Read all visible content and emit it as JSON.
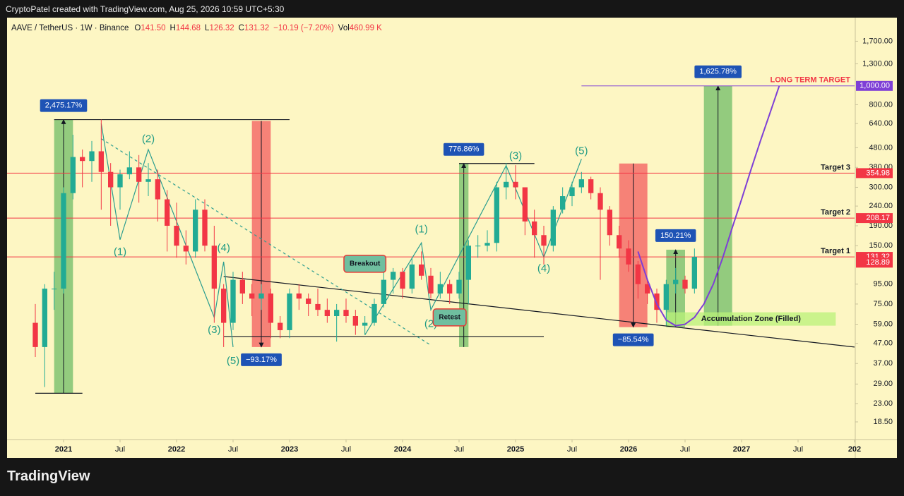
{
  "header": {
    "credit": "CryptoPatel created with TradingView.com, Aug 25, 2026 10:59 UTC+5:30",
    "logo": "TradingView"
  },
  "chart_data": {
    "type": "candlestick",
    "symbol": "AAVE / TetherUS · 1W · Binance",
    "ohlc": [
      {
        "key": "O",
        "value": "141.50"
      },
      {
        "key": "H",
        "value": "144.68"
      },
      {
        "key": "L",
        "value": "126.32"
      },
      {
        "key": "C",
        "value": "131.32"
      }
    ],
    "change": "−10.19 (−7.20%)",
    "volume": {
      "key": "Vol",
      "value": "460.99 K"
    },
    "log_scale": true,
    "up_color": "#22ab94",
    "down_color": "#f23645",
    "x": [
      "2020-10",
      "2020-11",
      "2020-12",
      "2021-01",
      "2021-02",
      "2021-03",
      "2021-04",
      "2021-05",
      "2021-06",
      "2021-07",
      "2021-08",
      "2021-09",
      "2021-10",
      "2021-11",
      "2021-12",
      "2022-01",
      "2022-02",
      "2022-03",
      "2022-04",
      "2022-05",
      "2022-06",
      "2022-07",
      "2022-08",
      "2022-09",
      "2022-10",
      "2022-11",
      "2022-12",
      "2023-01",
      "2023-02",
      "2023-03",
      "2023-04",
      "2023-05",
      "2023-06",
      "2023-07",
      "2023-08",
      "2023-09",
      "2023-10",
      "2023-11",
      "2023-12",
      "2024-01",
      "2024-02",
      "2024-03",
      "2024-04",
      "2024-05",
      "2024-06",
      "2024-07",
      "2024-08",
      "2024-09",
      "2024-10",
      "2024-11",
      "2024-12",
      "2025-01",
      "2025-02",
      "2025-03",
      "2025-04",
      "2025-05",
      "2025-06",
      "2025-07",
      "2025-08",
      "2025-09",
      "2025-10",
      "2025-11",
      "2025-12",
      "2026-01",
      "2026-02",
      "2026-03",
      "2026-04",
      "2026-05",
      "2026-06",
      "2026-07",
      "2026-08"
    ],
    "open": [
      60,
      45,
      90,
      90,
      280,
      430,
      410,
      460,
      360,
      300,
      350,
      380,
      320,
      330,
      260,
      190,
      150,
      140,
      230,
      150,
      90,
      60,
      100,
      85,
      80,
      85,
      60,
      55,
      85,
      80,
      75,
      70,
      65,
      70,
      65,
      58,
      60,
      75,
      100,
      110,
      90,
      120,
      105,
      85,
      95,
      85,
      100,
      150,
      150,
      155,
      300,
      320,
      300,
      200,
      170,
      150,
      230,
      270,
      300,
      330,
      280,
      230,
      170,
      145,
      120,
      95,
      85,
      70,
      95,
      100,
      90
    ],
    "high": [
      75,
      95,
      110,
      300,
      560,
      470,
      520,
      670,
      400,
      370,
      460,
      440,
      400,
      370,
      290,
      250,
      180,
      260,
      260,
      190,
      95,
      110,
      110,
      95,
      95,
      90,
      65,
      90,
      95,
      85,
      90,
      80,
      75,
      80,
      70,
      65,
      80,
      110,
      115,
      115,
      130,
      140,
      115,
      110,
      100,
      110,
      160,
      170,
      180,
      320,
      400,
      390,
      300,
      230,
      190,
      240,
      300,
      320,
      360,
      340,
      300,
      240,
      190,
      160,
      125,
      100,
      90,
      100,
      115,
      105,
      145
    ],
    "low": [
      40,
      28,
      70,
      85,
      260,
      300,
      320,
      230,
      190,
      230,
      330,
      250,
      270,
      200,
      140,
      130,
      120,
      130,
      140,
      60,
      45,
      55,
      75,
      65,
      70,
      50,
      50,
      50,
      70,
      65,
      65,
      60,
      48,
      60,
      52,
      52,
      58,
      72,
      85,
      80,
      85,
      100,
      80,
      80,
      75,
      80,
      75,
      130,
      140,
      140,
      260,
      260,
      170,
      130,
      120,
      140,
      220,
      240,
      280,
      260,
      100,
      150,
      130,
      110,
      80,
      75,
      60,
      58,
      85,
      85,
      85
    ],
    "close": [
      45,
      90,
      90,
      280,
      430,
      410,
      460,
      360,
      300,
      350,
      380,
      320,
      330,
      260,
      190,
      150,
      140,
      230,
      150,
      90,
      60,
      100,
      85,
      80,
      85,
      60,
      55,
      85,
      80,
      75,
      70,
      65,
      70,
      65,
      58,
      60,
      75,
      100,
      110,
      90,
      120,
      105,
      85,
      95,
      85,
      100,
      150,
      150,
      155,
      300,
      320,
      300,
      200,
      170,
      150,
      230,
      270,
      300,
      330,
      280,
      230,
      170,
      145,
      120,
      95,
      85,
      70,
      95,
      100,
      90,
      131.32
    ],
    "xlim": [
      "2020-07",
      "2028-01"
    ],
    "xticks": [
      {
        "value": "2021-01",
        "label": "2021"
      },
      {
        "value": "2021-07",
        "label": "Jul"
      },
      {
        "value": "2022-01",
        "label": "2022"
      },
      {
        "value": "2022-07",
        "label": "Jul"
      },
      {
        "value": "2023-01",
        "label": "2023"
      },
      {
        "value": "2023-07",
        "label": "Jul"
      },
      {
        "value": "2024-01",
        "label": "2024"
      },
      {
        "value": "2024-07",
        "label": "Jul"
      },
      {
        "value": "2025-01",
        "label": "2025"
      },
      {
        "value": "2025-07",
        "label": "Jul"
      },
      {
        "value": "2026-01",
        "label": "2026"
      },
      {
        "value": "2026-07",
        "label": "Jul"
      },
      {
        "value": "2027-01",
        "label": "2027"
      },
      {
        "value": "2027-07",
        "label": "Jul"
      },
      {
        "value": "2028-01",
        "label": "202"
      }
    ],
    "ylim": [
      15,
      2250
    ],
    "yticks": [
      {
        "value": 18.5,
        "label": "18.50"
      },
      {
        "value": 23,
        "label": "23.00"
      },
      {
        "value": 29,
        "label": "29.00"
      },
      {
        "value": 37,
        "label": "37.00"
      },
      {
        "value": 47,
        "label": "47.00"
      },
      {
        "value": 59,
        "label": "59.00"
      },
      {
        "value": 75,
        "label": "75.00"
      },
      {
        "value": 95,
        "label": "95.00"
      },
      {
        "value": 150,
        "label": "150.00"
      },
      {
        "value": 190,
        "label": "190.00"
      },
      {
        "value": 240,
        "label": "240.00"
      },
      {
        "value": 300,
        "label": "300.00"
      },
      {
        "value": 380,
        "label": "380.00"
      },
      {
        "value": 480,
        "label": "480.00"
      },
      {
        "value": 640,
        "label": "640.00"
      },
      {
        "value": 800,
        "label": "800.00"
      },
      {
        "value": 1300,
        "label": "1,300.00"
      },
      {
        "value": 1700,
        "label": "1,700.00"
      }
    ],
    "levels": [
      {
        "name": "Target 3",
        "value": 354.98,
        "label": "354.98",
        "color": "#f23645",
        "text_color": "#131722"
      },
      {
        "name": "Target 2",
        "value": 208.17,
        "label": "208.17",
        "color": "#f23645",
        "text_color": "#131722"
      },
      {
        "name": "Target 1",
        "value": 131.32,
        "label": "131.32",
        "color": "#f23645",
        "text_color": "#131722"
      },
      {
        "name": "LONG TERM TARGET",
        "value": 1000,
        "label": "1,000.00",
        "color": "#7e3fd6",
        "text_color": "#f23645",
        "from": "2025-08"
      }
    ],
    "axis_labels": [
      {
        "value": 128.89,
        "label": "128.89",
        "color": "#f23645"
      }
    ],
    "ranges": [
      {
        "label": "2,475.17%",
        "x0": "2020-12",
        "x1": "2021-02",
        "from": 26,
        "to": 670,
        "color": "#4caf50"
      },
      {
        "label": "−93.17%",
        "x0": "2022-09",
        "x1": "2022-11",
        "from": 660,
        "to": 45,
        "color": "#f23645"
      },
      {
        "label": "776.86%",
        "x0": "2024-07",
        "x1": "2024-08",
        "from": 45,
        "to": 398,
        "color": "#4caf50"
      },
      {
        "label": "−85.54%",
        "x0": "2025-12",
        "x1": "2026-03",
        "from": 398,
        "to": 57,
        "color": "#f23645"
      },
      {
        "label": "150.21%",
        "x0": "2026-05",
        "x1": "2026-07",
        "from": 57,
        "to": 143,
        "color": "#4caf50"
      },
      {
        "label": "1,625.78%",
        "x0": "2026-09",
        "x1": "2026-12",
        "from": 58,
        "to": 1000,
        "color": "#4caf50"
      }
    ],
    "lines": [
      {
        "points": [
          [
            "2020-12",
            670
          ],
          [
            "2023-01",
            670
          ]
        ],
        "color": "#131722"
      },
      {
        "points": [
          [
            "2020-10",
            26
          ],
          [
            "2021-03",
            26
          ]
        ],
        "color": "#131722"
      },
      {
        "points": [
          [
            "2022-06",
            51
          ],
          [
            "2025-04",
            51
          ]
        ],
        "color": "#131722"
      },
      {
        "points": [
          [
            "2024-07",
            398
          ],
          [
            "2025-03",
            398
          ]
        ],
        "color": "#131722"
      },
      {
        "points": [
          [
            "2022-06",
            104
          ],
          [
            "2028-01",
            45
          ]
        ],
        "color": "#131722"
      },
      {
        "points": [
          [
            "2021-05",
            534
          ],
          [
            "2024-04",
            46
          ]
        ],
        "color": "#2a9d8f",
        "dashed": true
      },
      {
        "points": [
          [
            "2021-05",
            640
          ],
          [
            "2021-07",
            161
          ],
          [
            "2021-10",
            470
          ],
          [
            "2022-05",
            64
          ],
          [
            "2022-06",
            124
          ],
          [
            "2022-07",
            45
          ]
        ],
        "color": "#2a9d8f"
      },
      {
        "points": [
          [
            "2023-09",
            52
          ],
          [
            "2024-03",
            155
          ],
          [
            "2024-04",
            70
          ],
          [
            "2024-12",
            388
          ],
          [
            "2025-04",
            131
          ],
          [
            "2025-08",
            420
          ]
        ],
        "color": "#2a9d8f"
      }
    ],
    "wave_labels": [
      {
        "text": "(1)",
        "x": "2021-07",
        "y": 139
      },
      {
        "text": "(2)",
        "x": "2021-10",
        "y": 530
      },
      {
        "text": "(3)",
        "x": "2022-05",
        "y": 55
      },
      {
        "text": "(4)",
        "x": "2022-06",
        "y": 145
      },
      {
        "text": "(5)",
        "x": "2022-07",
        "y": 38
      },
      {
        "text": "(1)",
        "x": "2024-03",
        "y": 181
      },
      {
        "text": "(2)",
        "x": "2024-04",
        "y": 59
      },
      {
        "text": "(3)",
        "x": "2025-01",
        "y": 433
      },
      {
        "text": "(4)",
        "x": "2025-04",
        "y": 114
      },
      {
        "text": "(5)",
        "x": "2025-08",
        "y": 460
      }
    ],
    "callouts": [
      {
        "text": "Breakout",
        "x": "2023-09",
        "y": 121
      },
      {
        "text": "Retest",
        "x": "2024-06",
        "y": 64
      }
    ],
    "zone": {
      "label": "Accumulation Zone (Filled)",
      "from": "2026-05",
      "to": "2027-11",
      "low": 58,
      "high": 68,
      "color": "#b9f27a"
    },
    "curve": {
      "color": "#7e3fd6",
      "points": [
        [
          "2026-02",
          140
        ],
        [
          "2026-03",
          100
        ],
        [
          "2026-04",
          75
        ],
        [
          "2026-05",
          62
        ],
        [
          "2026-06",
          58
        ],
        [
          "2026-07",
          59
        ],
        [
          "2026-08",
          64
        ],
        [
          "2026-09",
          75
        ],
        [
          "2026-10",
          95
        ],
        [
          "2026-11",
          130
        ],
        [
          "2026-12",
          185
        ],
        [
          "2027-01",
          260
        ],
        [
          "2027-02",
          370
        ],
        [
          "2027-03",
          520
        ],
        [
          "2027-04",
          720
        ],
        [
          "2027-05",
          1000
        ]
      ]
    }
  }
}
